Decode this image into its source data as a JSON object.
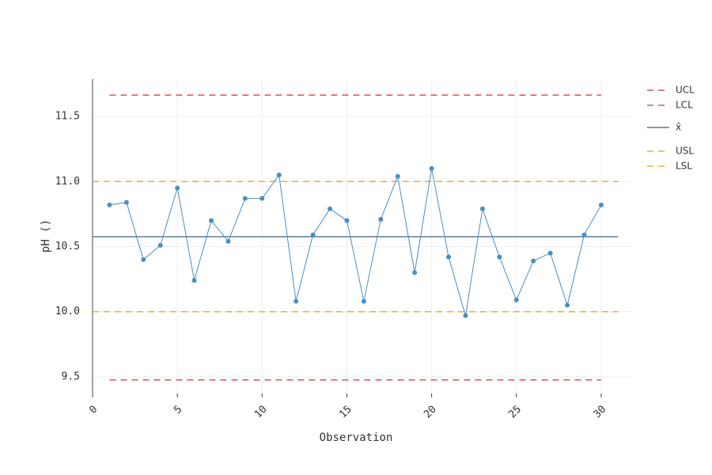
{
  "chart_data": {
    "type": "line",
    "x_label": "Observation",
    "y_label": "pH ()",
    "x": [
      1,
      2,
      3,
      4,
      5,
      6,
      7,
      8,
      9,
      10,
      11,
      12,
      13,
      14,
      15,
      16,
      17,
      18,
      19,
      20,
      21,
      22,
      23,
      24,
      25,
      26,
      27,
      28,
      29,
      30
    ],
    "series": [
      {
        "color": "#4a8ec2",
        "values": [
          10.82,
          10.84,
          10.4,
          10.51,
          10.95,
          10.24,
          10.7,
          10.54,
          10.87,
          10.87,
          11.05,
          10.08,
          10.59,
          10.79,
          10.7,
          10.08,
          10.71,
          11.04,
          10.3,
          11.1,
          10.42,
          9.97,
          10.79,
          10.42,
          10.09,
          10.39,
          10.45,
          10.05,
          10.59,
          10.82
        ]
      }
    ],
    "lines": [
      {
        "name": "UCL",
        "value": 11.664,
        "x": [
          1,
          30
        ],
        "color": "#d9534f",
        "dash": true
      },
      {
        "name": "LCL",
        "value": 9.476,
        "x": [
          1,
          30
        ],
        "color": "#d9534f",
        "dash": true
      },
      {
        "name": "x̄",
        "value": 10.576,
        "x": [
          0,
          31
        ],
        "color": "#5b7c99",
        "dash": false
      },
      {
        "name": "USL",
        "value": 11.0,
        "x": [
          0,
          31
        ],
        "color": "#f0ad2e",
        "dash": true
      },
      {
        "name": "LSL",
        "value": 10.0,
        "x": [
          0,
          31
        ],
        "color": "#f0ad2e",
        "dash": true
      }
    ],
    "xlim": [
      0,
      31.87
    ],
    "ylim": [
      9.372,
      11.786
    ],
    "xticks": [
      0,
      5,
      10,
      15,
      20,
      25,
      30
    ],
    "yticks": [
      9.5,
      {
        "value": 10,
        "label": "10.0"
      },
      10.5,
      {
        "value": 11,
        "label": "11.0"
      },
      11.5
    ],
    "grid": true,
    "legend": "right"
  }
}
